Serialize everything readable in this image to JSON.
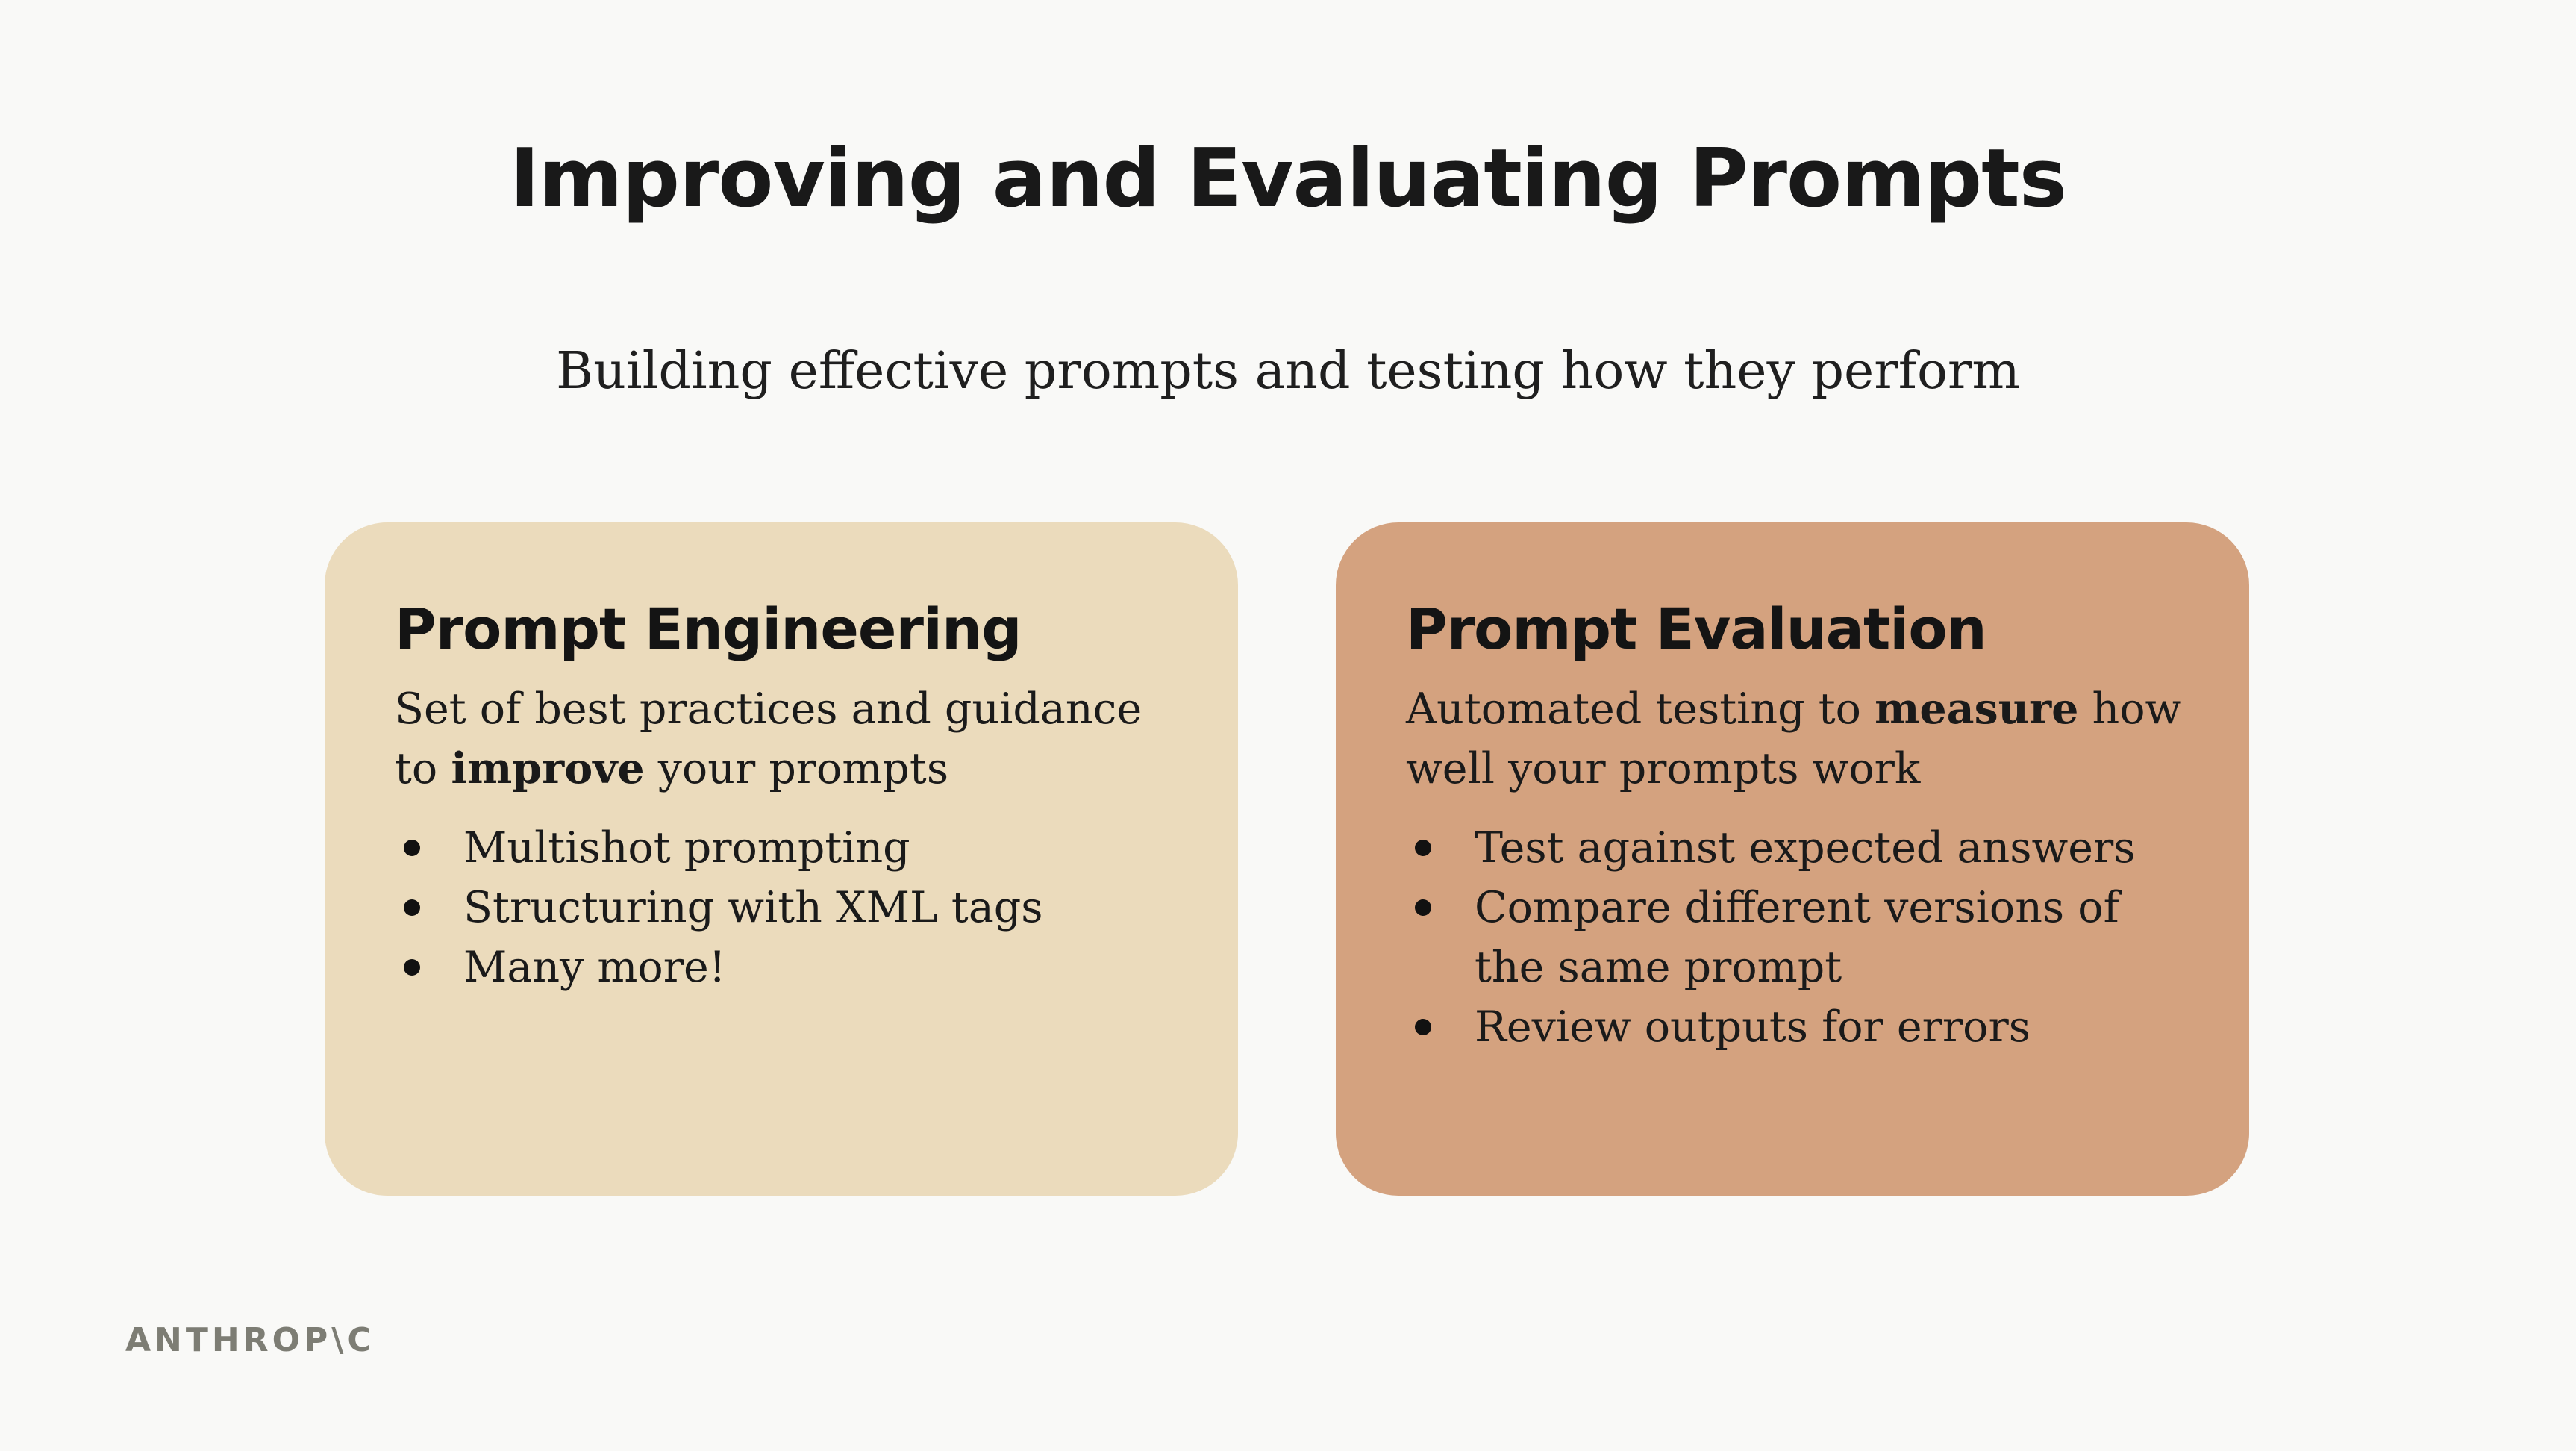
{
  "title": "Improving and Evaluating Prompts",
  "subtitle": "Building effective prompts and testing how they perform",
  "colors": {
    "background": "#f9f9f7",
    "card_left": "#ebdbbc",
    "card_right": "#d4a27f",
    "logo": "#7d7d74"
  },
  "cards": [
    {
      "heading": "Prompt Engineering",
      "desc_before": "Set of best practices and guidance to ",
      "desc_bold": "improve",
      "desc_after": " your prompts",
      "bullets": [
        "Multishot prompting",
        "Structuring with XML tags",
        "Many more!"
      ]
    },
    {
      "heading": "Prompt Evaluation",
      "desc_before": "Automated testing to ",
      "desc_bold": "measure",
      "desc_after": " how well your prompts work",
      "bullets": [
        "Test against expected answers",
        "Compare different versions of the same prompt",
        "Review outputs for errors"
      ]
    }
  ],
  "logo": "ANTHROP\\C"
}
